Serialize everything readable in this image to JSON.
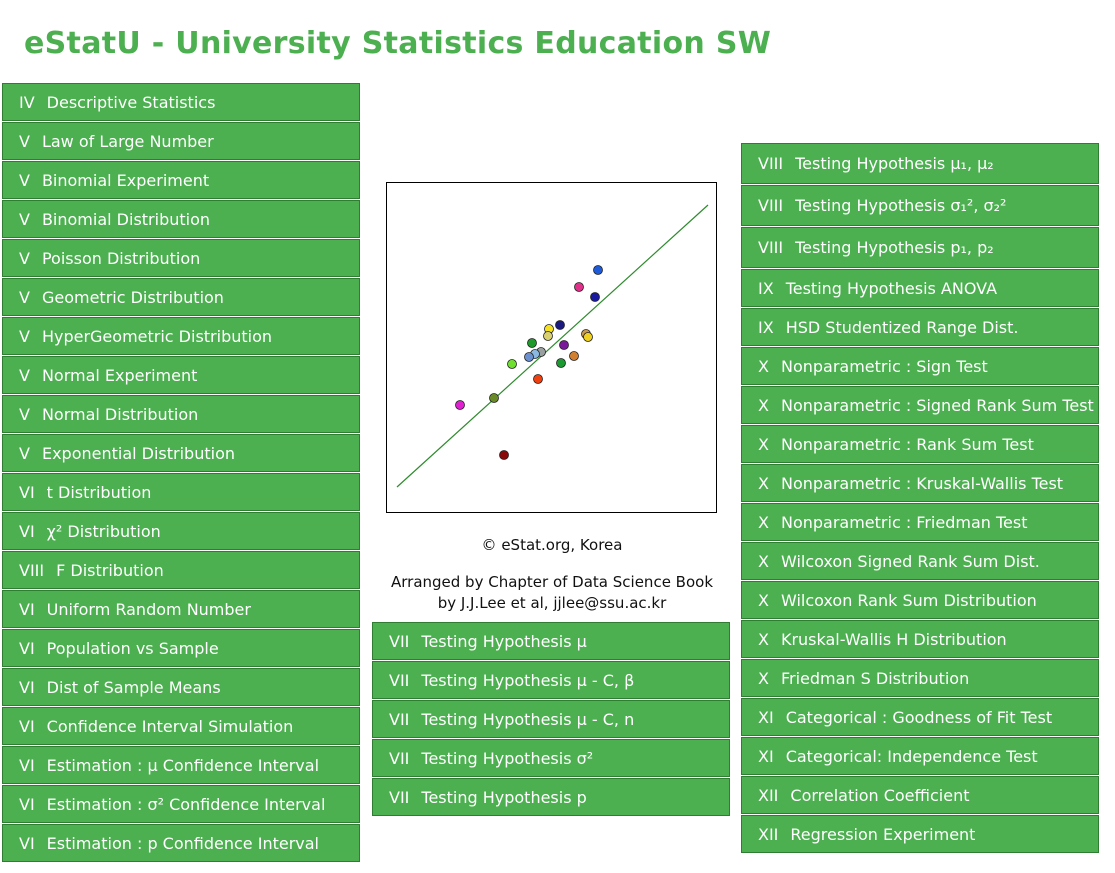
{
  "header": {
    "title": "eStatU - University Statistics Education SW"
  },
  "left_menu": [
    {
      "chapter": "IV",
      "label": "Descriptive Statistics"
    },
    {
      "chapter": "V",
      "label": "Law of Large Number"
    },
    {
      "chapter": "V",
      "label": "Binomial Experiment"
    },
    {
      "chapter": "V",
      "label": "Binomial Distribution"
    },
    {
      "chapter": "V",
      "label": "Poisson Distribution"
    },
    {
      "chapter": "V",
      "label": "Geometric Distribution"
    },
    {
      "chapter": "V",
      "label": "HyperGeometric Distribution"
    },
    {
      "chapter": "V",
      "label": "Normal Experiment"
    },
    {
      "chapter": "V",
      "label": "Normal Distribution"
    },
    {
      "chapter": "V",
      "label": "Exponential Distribution"
    },
    {
      "chapter": "VI",
      "label": "t Distribution"
    },
    {
      "chapter": "VI",
      "label": "χ² Distribution"
    },
    {
      "chapter": "VIII",
      "label": "F Distribution"
    },
    {
      "chapter": "VI",
      "label": "Uniform Random Number"
    },
    {
      "chapter": "VI",
      "label": "Population vs Sample"
    },
    {
      "chapter": "VI",
      "label": "Dist of Sample Means"
    },
    {
      "chapter": "VI",
      "label": "Confidence Interval Simulation"
    },
    {
      "chapter": "VI",
      "label": "Estimation : μ Confidence Interval"
    },
    {
      "chapter": "VI",
      "label": "Estimation : σ² Confidence Interval"
    },
    {
      "chapter": "VI",
      "label": "Estimation : p Confidence Interval"
    }
  ],
  "credits": {
    "copyright": "© eStat.org, Korea",
    "line1": "Arranged by Chapter of Data Science Book",
    "line2": "by J.J.Lee et al, jjlee@ssu.ac.kr"
  },
  "middle_menu": [
    {
      "chapter": "VII",
      "label": "Testing Hypothesis μ"
    },
    {
      "chapter": "VII",
      "label": "Testing Hypothesis μ - C, β"
    },
    {
      "chapter": "VII",
      "label": "Testing Hypothesis μ - C, n"
    },
    {
      "chapter": "VII",
      "label": "Testing Hypothesis σ²"
    },
    {
      "chapter": "VII",
      "label": "Testing Hypothesis p"
    }
  ],
  "right_menu": [
    {
      "chapter": "VIII",
      "label": "Testing Hypothesis μ₁, μ₂"
    },
    {
      "chapter": "VIII",
      "label": "Testing Hypothesis σ₁², σ₂²"
    },
    {
      "chapter": "VIII",
      "label": "Testing Hypothesis p₁, p₂"
    },
    {
      "chapter": "IX",
      "label": "Testing Hypothesis ANOVA"
    },
    {
      "chapter": "IX",
      "label": "HSD Studentized Range Dist."
    },
    {
      "chapter": "X",
      "label": "Nonparametric : Sign Test"
    },
    {
      "chapter": "X",
      "label": "Nonparametric : Signed Rank Sum Test"
    },
    {
      "chapter": "X",
      "label": "Nonparametric : Rank Sum Test"
    },
    {
      "chapter": "X",
      "label": "Nonparametric : Kruskal-Wallis Test"
    },
    {
      "chapter": "X",
      "label": "Nonparametric : Friedman Test"
    },
    {
      "chapter": "X",
      "label": "Wilcoxon Signed Rank Sum Dist."
    },
    {
      "chapter": "X",
      "label": "Wilcoxon Rank Sum Distribution"
    },
    {
      "chapter": "X",
      "label": "Kruskal-Wallis H Distribution"
    },
    {
      "chapter": "X",
      "label": "Friedman S Distribution"
    },
    {
      "chapter": "XI",
      "label": "Categorical : Goodness of Fit Test"
    },
    {
      "chapter": "XI",
      "label": "Categorical: Independence Test"
    },
    {
      "chapter": "XII",
      "label": "Correlation Coefficient"
    },
    {
      "chapter": "XII",
      "label": "Regression Experiment"
    }
  ]
}
